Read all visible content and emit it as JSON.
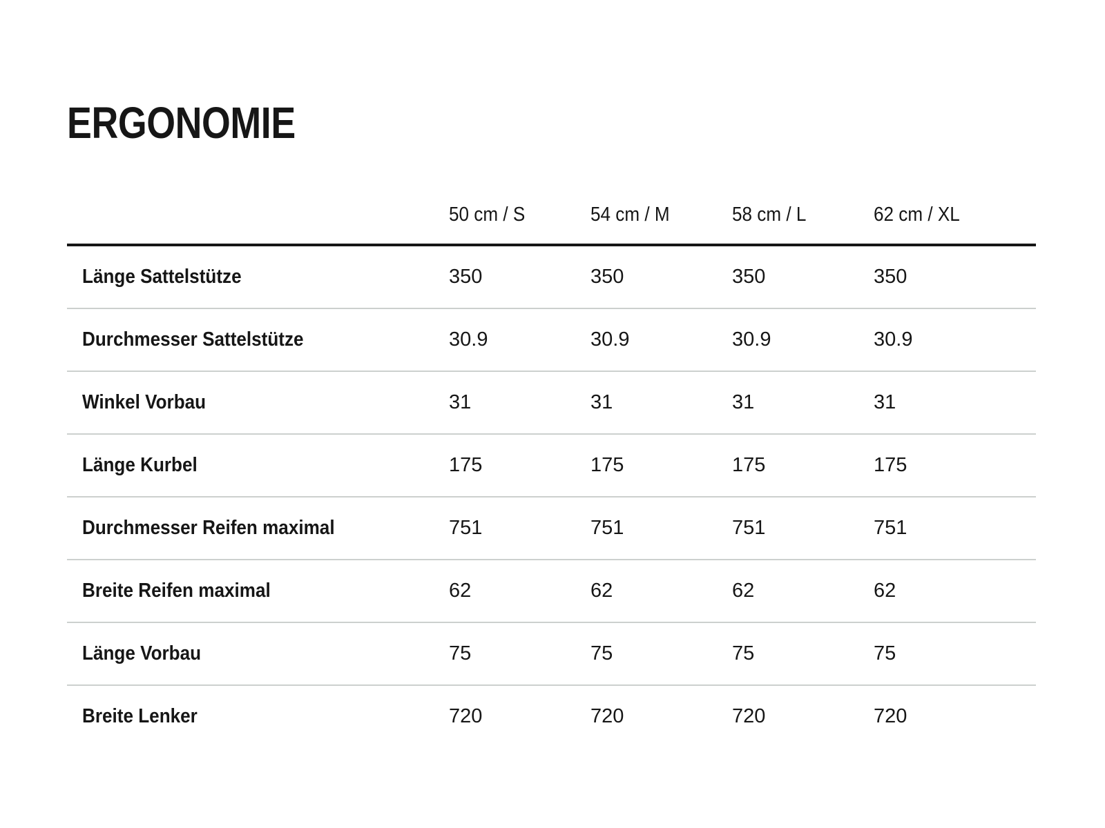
{
  "title": "ERGONOMIE",
  "table": {
    "size_columns": [
      "50 cm / S",
      "54 cm / M",
      "58 cm / L",
      "62 cm / XL"
    ],
    "rows": [
      {
        "label": "Länge Sattelstütze",
        "values": [
          "350",
          "350",
          "350",
          "350"
        ]
      },
      {
        "label": "Durchmesser Sattelstütze",
        "values": [
          "30.9",
          "30.9",
          "30.9",
          "30.9"
        ]
      },
      {
        "label": "Winkel Vorbau",
        "values": [
          "31",
          "31",
          "31",
          "31"
        ]
      },
      {
        "label": "Länge Kurbel",
        "values": [
          "175",
          "175",
          "175",
          "175"
        ]
      },
      {
        "label": "Durchmesser Reifen maximal",
        "values": [
          "751",
          "751",
          "751",
          "751"
        ]
      },
      {
        "label": "Breite Reifen maximal",
        "values": [
          "62",
          "62",
          "62",
          "62"
        ]
      },
      {
        "label": "Länge Vorbau",
        "values": [
          "75",
          "75",
          "75",
          "75"
        ]
      },
      {
        "label": "Breite Lenker",
        "values": [
          "720",
          "720",
          "720",
          "720"
        ]
      }
    ]
  },
  "colors": {
    "text": "#161616",
    "header_rule": "#161616",
    "row_divider": "#ccd0ce",
    "background": "#ffffff"
  }
}
